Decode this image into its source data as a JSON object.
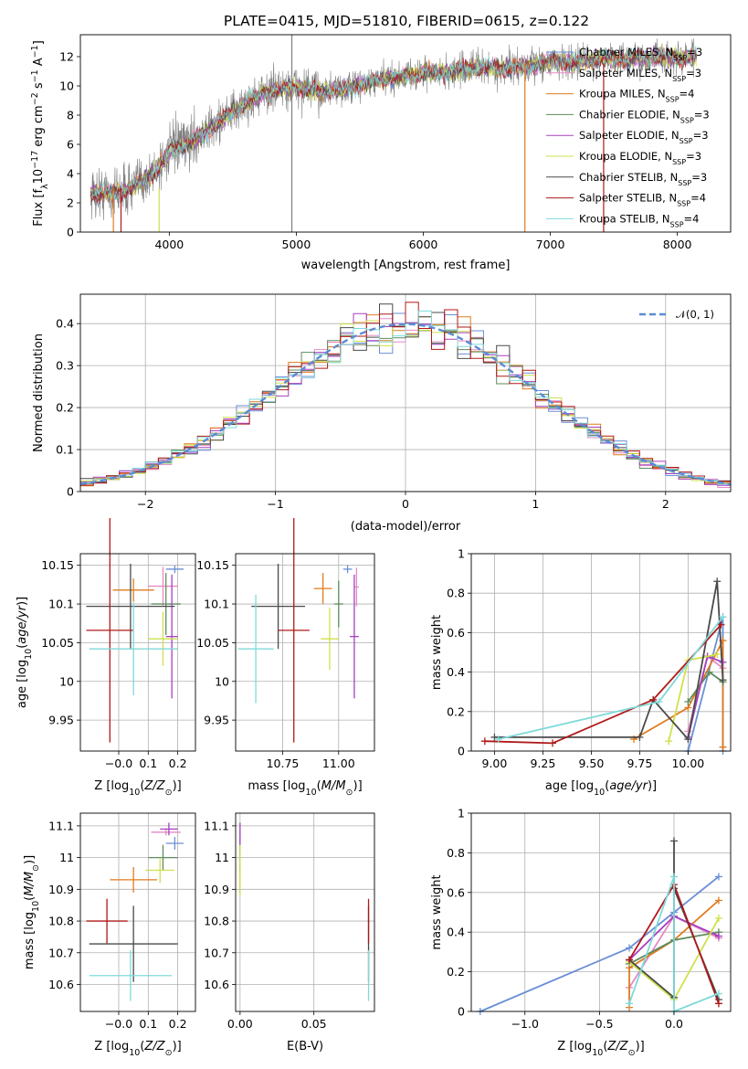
{
  "figure": {
    "title": "PLATE=0415, MJD=51810, FIBERID=0615, z=0.122"
  },
  "colors": {
    "Chabrier MILES": "#6a8fd6",
    "Salpeter MILES": "#e58ac4",
    "Kroupa MILES": "#e07b1e",
    "Chabrier ELODIE": "#5e8c5e",
    "Salpeter ELODIE": "#a640c0",
    "Kroupa ELODIE": "#cfe04c",
    "Chabrier STELIB": "#4a4a4a",
    "Salpeter STELIB": "#b01818",
    "Kroupa STELIB": "#7fd9d9",
    "data": "#7f7f7f",
    "gaussian": "#5b8bd6"
  },
  "chart_data": [
    {
      "id": "spectrum",
      "type": "line",
      "xlabel": "wavelength [Angstrom, rest frame]",
      "ylabel": "Flux [f_λ 10^-17 erg cm^-2 s^-1 A^-1]",
      "xlim": [
        3300,
        8420
      ],
      "ylim": [
        0,
        13.5
      ],
      "xticks": [
        4000,
        5000,
        6000,
        7000,
        8000
      ],
      "yticks": [
        0,
        2,
        4,
        6,
        8,
        10,
        12
      ],
      "legend_position": "right",
      "legend": [
        {
          "model": "Chabrier MILES",
          "nssp": "3"
        },
        {
          "model": "Salpeter MILES",
          "nssp": "3"
        },
        {
          "model": "Kroupa MILES",
          "nssp": "4"
        },
        {
          "model": "Chabrier ELODIE",
          "nssp": "3"
        },
        {
          "model": "Salpeter ELODIE",
          "nssp": "3"
        },
        {
          "model": "Kroupa ELODIE",
          "nssp": "3"
        },
        {
          "model": "Chabrier STELIB",
          "nssp": "3"
        },
        {
          "model": "Salpeter STELIB",
          "nssp": "4"
        },
        {
          "model": "Kroupa STELIB",
          "nssp": "4"
        }
      ],
      "continuum": [
        [
          3380,
          2.7
        ],
        [
          3550,
          2.6
        ],
        [
          3700,
          3.0
        ],
        [
          3800,
          3.6
        ],
        [
          3900,
          4.2
        ],
        [
          4000,
          5.6
        ],
        [
          4200,
          6.3
        ],
        [
          4400,
          7.6
        ],
        [
          4600,
          8.8
        ],
        [
          4800,
          9.7
        ],
        [
          5000,
          9.9
        ],
        [
          5200,
          9.6
        ],
        [
          5400,
          9.8
        ],
        [
          5600,
          10.3
        ],
        [
          5800,
          10.6
        ],
        [
          6000,
          10.9
        ],
        [
          6200,
          10.9
        ],
        [
          6400,
          11.3
        ],
        [
          6600,
          11.2
        ],
        [
          6800,
          11.3
        ],
        [
          7000,
          11.7
        ],
        [
          7200,
          11.6
        ],
        [
          7400,
          11.9
        ],
        [
          7600,
          11.8
        ],
        [
          7800,
          12.0
        ],
        [
          8000,
          11.9
        ],
        [
          8150,
          12.0
        ]
      ]
    },
    {
      "id": "residuals",
      "type": "histogram",
      "xlabel": "(data-model)/error",
      "ylabel": "Normed distribution",
      "xlim": [
        -2.5,
        2.5
      ],
      "ylim": [
        0,
        0.47
      ],
      "xticks": [
        -2,
        -1,
        0,
        1,
        2
      ],
      "yticks": [
        0.0,
        0.1,
        0.2,
        0.3,
        0.4
      ],
      "legend_position": "top-right",
      "legend_label": "𝒩(0, 1)",
      "bin_width": 0.1
    },
    {
      "id": "age-vs-Z",
      "type": "errorbar",
      "xlabel": "Z [log10(Z/Z⊙)]",
      "ylabel": "age [log10(age/yr)]",
      "xlim": [
        -0.13,
        0.26
      ],
      "ylim": [
        9.91,
        10.165
      ],
      "xticks": [
        -0.0,
        0.1,
        0.2
      ],
      "xtick_labels": [
        "−0.0",
        "0.1",
        "0.2"
      ],
      "yticks": [
        9.95,
        10.0,
        10.05,
        10.1,
        10.15
      ],
      "points": [
        {
          "model": "Chabrier MILES",
          "x": 0.19,
          "xerr": 0.03,
          "y": 10.145,
          "yerr": 0.005
        },
        {
          "model": "Salpeter MILES",
          "x": 0.15,
          "xerr": 0.05,
          "y": 10.123,
          "yerr": 0.025
        },
        {
          "model": "Kroupa MILES",
          "x": 0.05,
          "xerr": 0.07,
          "y": 10.118,
          "yerr": 0.015
        },
        {
          "model": "Chabrier ELODIE",
          "x": 0.16,
          "xerr": 0.05,
          "y": 10.1,
          "yerr": 0.04
        },
        {
          "model": "Salpeter ELODIE",
          "x": 0.18,
          "xerr": 0.02,
          "y": 10.058,
          "yerr": 0.08
        },
        {
          "model": "Kroupa ELODIE",
          "x": 0.15,
          "xerr": 0.05,
          "y": 10.055,
          "yerr": 0.035
        },
        {
          "model": "Chabrier STELIB",
          "x": 0.04,
          "xerr": 0.15,
          "y": 10.097,
          "yerr": 0.055
        },
        {
          "model": "Salpeter STELIB",
          "x": -0.03,
          "xerr": 0.08,
          "y": 10.066,
          "yerr": 0.145
        },
        {
          "model": "Kroupa STELIB",
          "x": 0.05,
          "xerr": 0.15,
          "y": 10.042,
          "yerr": 0.06
        }
      ]
    },
    {
      "id": "age-vs-mass",
      "type": "errorbar",
      "xlabel": "mass [log10(M/M⊙)]",
      "ylabel": "",
      "xlim": [
        10.54,
        11.16
      ],
      "ylim": [
        9.91,
        10.165
      ],
      "xticks": [
        10.75,
        11.0
      ],
      "xtick_labels": [
        "10.75",
        "11.00"
      ],
      "yticks": [
        9.95,
        10.0,
        10.05,
        10.1,
        10.15
      ],
      "points": [
        {
          "model": "Chabrier MILES",
          "x": 11.04,
          "xerr": 0.02,
          "y": 10.145,
          "yerr": 0.005
        },
        {
          "model": "Salpeter MILES",
          "x": 11.08,
          "xerr": 0.01,
          "y": 10.122,
          "yerr": 0.025
        },
        {
          "model": "Kroupa MILES",
          "x": 10.93,
          "xerr": 0.04,
          "y": 10.12,
          "yerr": 0.02
        },
        {
          "model": "Chabrier ELODIE",
          "x": 11.0,
          "xerr": 0.02,
          "y": 10.1,
          "yerr": 0.03
        },
        {
          "model": "Salpeter ELODIE",
          "x": 11.07,
          "xerr": 0.02,
          "y": 10.058,
          "yerr": 0.08
        },
        {
          "model": "Kroupa ELODIE",
          "x": 10.96,
          "xerr": 0.04,
          "y": 10.055,
          "yerr": 0.04
        },
        {
          "model": "Chabrier STELIB",
          "x": 10.73,
          "xerr": 0.12,
          "y": 10.097,
          "yerr": 0.055
        },
        {
          "model": "Salpeter STELIB",
          "x": 10.8,
          "xerr": 0.07,
          "y": 10.066,
          "yerr": 0.145
        },
        {
          "model": "Kroupa STELIB",
          "x": 10.63,
          "xerr": 0.08,
          "y": 10.042,
          "yerr": 0.07
        }
      ]
    },
    {
      "id": "weight-vs-age",
      "type": "line",
      "xlabel": "age [log10(age/yr)]",
      "ylabel": "mass weight",
      "xlim": [
        8.88,
        10.22
      ],
      "ylim": [
        0.0,
        1.0
      ],
      "xticks": [
        9.0,
        9.25,
        9.5,
        9.75,
        10.0
      ],
      "xtick_labels": [
        "9.00",
        "9.25",
        "9.50",
        "9.75",
        "10.00"
      ],
      "yticks": [
        0.0,
        0.2,
        0.4,
        0.6,
        0.8,
        1.0
      ],
      "series": [
        {
          "model": "Chabrier MILES",
          "x": [
            10.0,
            10.18,
            10.18
          ],
          "y": [
            0.0,
            0.68,
            0.0
          ]
        },
        {
          "model": "Salpeter MILES",
          "x": [
            10.0,
            10.1,
            10.18
          ],
          "y": [
            0.1,
            0.48,
            0.42
          ]
        },
        {
          "model": "Kroupa MILES",
          "x": [
            9.72,
            10.0,
            10.18,
            10.18
          ],
          "y": [
            0.06,
            0.22,
            0.56,
            0.02
          ]
        },
        {
          "model": "Chabrier ELODIE",
          "x": [
            10.0,
            10.11,
            10.18
          ],
          "y": [
            0.25,
            0.4,
            0.35
          ]
        },
        {
          "model": "Salpeter ELODIE",
          "x": [
            10.0,
            10.1,
            10.18
          ],
          "y": [
            0.07,
            0.48,
            0.45
          ]
        },
        {
          "model": "Kroupa ELODIE",
          "x": [
            9.9,
            10.0,
            10.15
          ],
          "y": [
            0.05,
            0.46,
            0.49
          ]
        },
        {
          "model": "Chabrier STELIB",
          "x": [
            9.0,
            9.75,
            9.82,
            10.0,
            10.15,
            10.18
          ],
          "y": [
            0.07,
            0.07,
            0.26,
            0.06,
            0.86,
            0.36
          ]
        },
        {
          "model": "Salpeter STELIB",
          "x": [
            8.95,
            9.3,
            9.82,
            10.17
          ],
          "y": [
            0.05,
            0.04,
            0.26,
            0.64
          ]
        },
        {
          "model": "Kroupa STELIB",
          "x": [
            9.02,
            9.85,
            10.18
          ],
          "y": [
            0.06,
            0.25,
            0.68
          ]
        }
      ]
    },
    {
      "id": "mass-vs-Z",
      "type": "errorbar",
      "xlabel": "Z [log10(Z/Z⊙)]",
      "ylabel": "mass [log10(M/M⊙)]",
      "xlim": [
        -0.13,
        0.26
      ],
      "ylim": [
        10.515,
        11.14
      ],
      "xticks": [
        -0.0,
        0.1,
        0.2
      ],
      "xtick_labels": [
        "−0.0",
        "0.1",
        "0.2"
      ],
      "yticks": [
        10.6,
        10.7,
        10.8,
        10.9,
        11.0,
        11.1
      ],
      "points": [
        {
          "model": "Chabrier MILES",
          "x": 0.19,
          "xerr": 0.03,
          "y": 11.045,
          "yerr": 0.02
        },
        {
          "model": "Salpeter MILES",
          "x": 0.16,
          "xerr": 0.05,
          "y": 11.08,
          "yerr": 0.01
        },
        {
          "model": "Kroupa MILES",
          "x": 0.05,
          "xerr": 0.08,
          "y": 10.93,
          "yerr": 0.04
        },
        {
          "model": "Chabrier ELODIE",
          "x": 0.15,
          "xerr": 0.05,
          "y": 11.0,
          "yerr": 0.04
        },
        {
          "model": "Salpeter ELODIE",
          "x": 0.17,
          "xerr": 0.03,
          "y": 11.09,
          "yerr": 0.02
        },
        {
          "model": "Kroupa ELODIE",
          "x": 0.14,
          "xerr": 0.05,
          "y": 10.96,
          "yerr": 0.04
        },
        {
          "model": "Chabrier STELIB",
          "x": 0.05,
          "xerr": 0.15,
          "y": 10.728,
          "yerr": 0.12
        },
        {
          "model": "Salpeter STELIB",
          "x": -0.04,
          "xerr": 0.07,
          "y": 10.8,
          "yerr": 0.07
        },
        {
          "model": "Kroupa STELIB",
          "x": 0.04,
          "xerr": 0.14,
          "y": 10.628,
          "yerr": 0.08
        }
      ]
    },
    {
      "id": "mass-vs-ebv",
      "type": "errorbar",
      "xlabel": "E(B-V)",
      "ylabel": "",
      "xlim": [
        -0.003,
        0.091
      ],
      "ylim": [
        10.515,
        11.14
      ],
      "xticks": [
        0.0,
        0.05
      ],
      "xtick_labels": [
        "0.00",
        "0.05"
      ],
      "yticks": [
        10.6,
        10.7,
        10.8,
        10.9,
        11.0,
        11.1
      ],
      "points": [
        {
          "model": "Chabrier MILES",
          "x": 0.0,
          "xerr": 0.0,
          "y": 11.045,
          "yerr": 0.02
        },
        {
          "model": "Salpeter MILES",
          "x": 0.0,
          "xerr": 0.0,
          "y": 11.08,
          "yerr": 0.01
        },
        {
          "model": "Kroupa MILES",
          "x": 0.0,
          "xerr": 0.0,
          "y": 10.93,
          "yerr": 0.04
        },
        {
          "model": "Chabrier ELODIE",
          "x": 0.0,
          "xerr": 0.0,
          "y": 11.0,
          "yerr": 0.04
        },
        {
          "model": "Salpeter ELODIE",
          "x": 0.0,
          "xerr": 0.0,
          "y": 11.06,
          "yerr": 0.05
        },
        {
          "model": "Kroupa ELODIE",
          "x": 0.0,
          "xerr": 0.0,
          "y": 10.96,
          "yerr": 0.08
        },
        {
          "model": "Chabrier STELIB",
          "x": 0.087,
          "xerr": 0.0,
          "y": 10.728,
          "yerr": 0.12
        },
        {
          "model": "Salpeter STELIB",
          "x": 0.087,
          "xerr": 0.0,
          "y": 10.8,
          "yerr": 0.07
        },
        {
          "model": "Kroupa STELIB",
          "x": 0.087,
          "xerr": 0.0,
          "y": 10.628,
          "yerr": 0.08
        }
      ]
    },
    {
      "id": "weight-vs-Z",
      "type": "line",
      "xlabel": "Z [log10(Z/Z⊙)]",
      "ylabel": "mass weight",
      "xlim": [
        -1.36,
        0.38
      ],
      "ylim": [
        0.0,
        1.0
      ],
      "xticks": [
        -1.0,
        -0.5,
        0.0
      ],
      "xtick_labels": [
        "−1.0",
        "−0.5",
        "0.0"
      ],
      "yticks": [
        0.0,
        0.2,
        0.4,
        0.6,
        0.8,
        1.0
      ],
      "series": [
        {
          "model": "Chabrier MILES",
          "x": [
            -1.3,
            -0.3,
            0.0,
            0.3
          ],
          "y": [
            0.0,
            0.32,
            0.5,
            0.68
          ]
        },
        {
          "model": "Salpeter MILES",
          "x": [
            -0.3,
            0.0,
            0.3
          ],
          "y": [
            0.12,
            0.48,
            0.37
          ]
        },
        {
          "model": "Kroupa MILES",
          "x": [
            -0.3,
            -0.3,
            0.0,
            0.3
          ],
          "y": [
            0.02,
            0.22,
            0.36,
            0.56
          ]
        },
        {
          "model": "Chabrier ELODIE",
          "x": [
            -0.3,
            0.0,
            0.3
          ],
          "y": [
            0.24,
            0.36,
            0.4
          ]
        },
        {
          "model": "Salpeter ELODIE",
          "x": [
            -0.3,
            0.0,
            0.3
          ],
          "y": [
            0.26,
            0.48,
            0.38
          ]
        },
        {
          "model": "Kroupa ELODIE",
          "x": [
            -0.3,
            0.0,
            0.3
          ],
          "y": [
            0.25,
            0.06,
            0.47
          ]
        },
        {
          "model": "Chabrier STELIB",
          "x": [
            -0.3,
            0.0,
            0.0,
            0.0,
            0.3
          ],
          "y": [
            0.26,
            0.07,
            0.86,
            0.62,
            0.06
          ]
        },
        {
          "model": "Salpeter STELIB",
          "x": [
            -0.3,
            0.0,
            0.3
          ],
          "y": [
            0.26,
            0.64,
            0.04
          ]
        },
        {
          "model": "Kroupa STELIB",
          "x": [
            -0.3,
            0.0,
            0.0,
            0.3
          ],
          "y": [
            0.04,
            0.68,
            0.0,
            0.09
          ]
        }
      ]
    }
  ]
}
